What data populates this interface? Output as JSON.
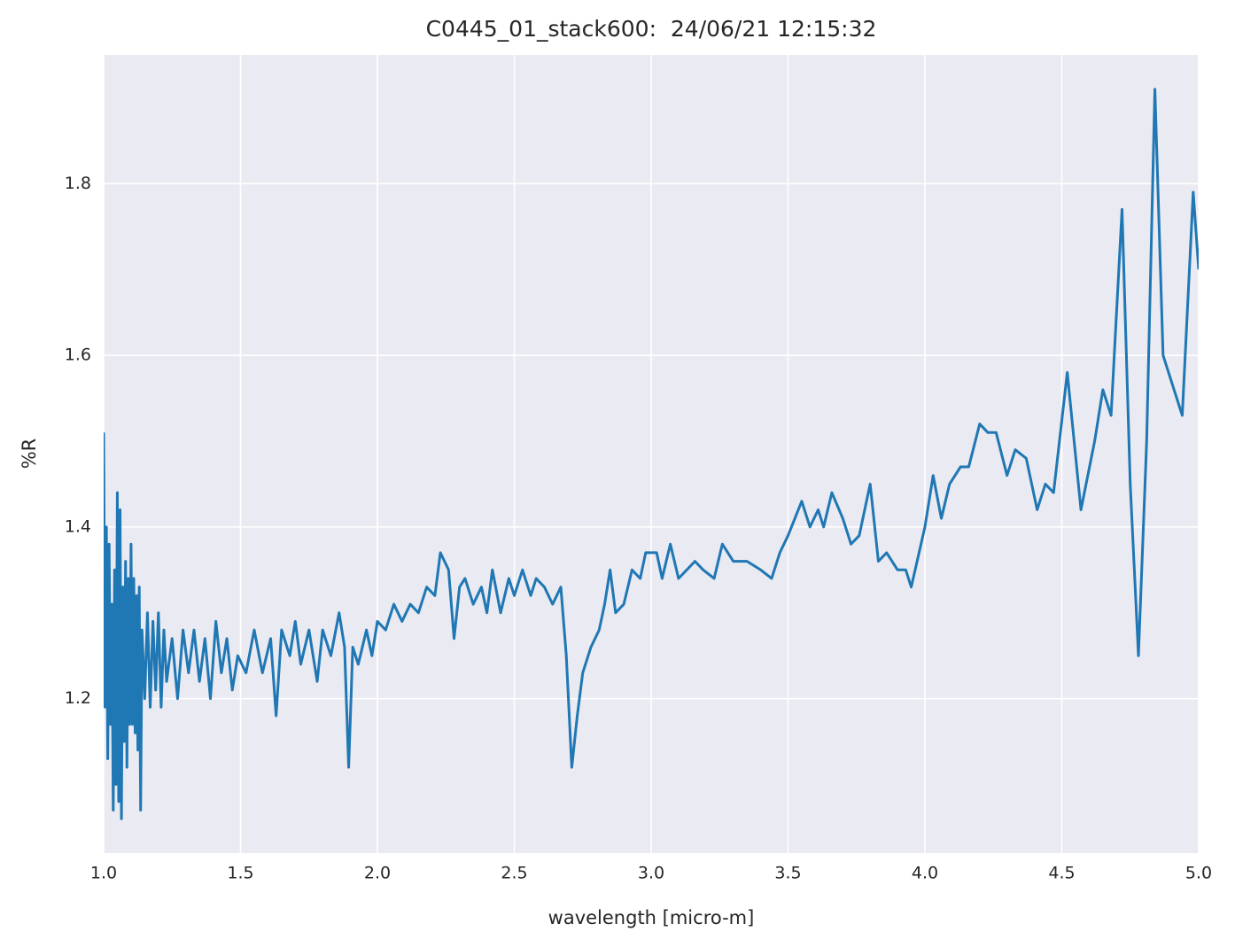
{
  "chart_data": {
    "type": "line",
    "title": "C0445_01_stack600:  24/06/21 12:15:32",
    "x_label": "wavelength [micro-m]",
    "y_label": "%R",
    "color": "#1f77b4",
    "background": "#eaeaf2",
    "grid": true,
    "xlim": [
      1,
      5
    ],
    "ylim": [
      1.02,
      1.95
    ],
    "xticks": [
      {
        "value": 1,
        "label": "1.0"
      },
      1.5,
      {
        "value": 2,
        "label": "2.0"
      },
      2.5,
      {
        "value": 3,
        "label": "3.0"
      },
      3.5,
      {
        "value": 4,
        "label": "4.0"
      },
      4.5,
      {
        "value": 5,
        "label": "5.0"
      }
    ],
    "yticks": [
      1.2,
      1.4,
      1.6,
      1.8
    ],
    "x": [
      1.0,
      1.005,
      1.01,
      1.015,
      1.02,
      1.025,
      1.03,
      1.035,
      1.04,
      1.045,
      1.05,
      1.055,
      1.06,
      1.065,
      1.07,
      1.075,
      1.08,
      1.085,
      1.09,
      1.095,
      1.1,
      1.105,
      1.11,
      1.115,
      1.12,
      1.125,
      1.13,
      1.135,
      1.14,
      1.15,
      1.16,
      1.17,
      1.18,
      1.19,
      1.2,
      1.21,
      1.22,
      1.23,
      1.25,
      1.27,
      1.29,
      1.31,
      1.33,
      1.35,
      1.37,
      1.39,
      1.41,
      1.43,
      1.45,
      1.47,
      1.49,
      1.52,
      1.55,
      1.58,
      1.61,
      1.63,
      1.65,
      1.68,
      1.7,
      1.72,
      1.75,
      1.78,
      1.8,
      1.83,
      1.86,
      1.88,
      1.895,
      1.91,
      1.93,
      1.96,
      1.98,
      2.0,
      2.03,
      2.06,
      2.09,
      2.12,
      2.15,
      2.18,
      2.21,
      2.23,
      2.26,
      2.28,
      2.3,
      2.32,
      2.35,
      2.38,
      2.4,
      2.42,
      2.45,
      2.48,
      2.5,
      2.53,
      2.56,
      2.58,
      2.61,
      2.64,
      2.67,
      2.69,
      2.71,
      2.73,
      2.75,
      2.78,
      2.81,
      2.83,
      2.85,
      2.87,
      2.9,
      2.93,
      2.96,
      2.98,
      3.02,
      3.04,
      3.07,
      3.1,
      3.13,
      3.16,
      3.19,
      3.23,
      3.26,
      3.3,
      3.35,
      3.4,
      3.44,
      3.47,
      3.5,
      3.55,
      3.58,
      3.61,
      3.63,
      3.66,
      3.7,
      3.73,
      3.76,
      3.8,
      3.83,
      3.86,
      3.9,
      3.93,
      3.95,
      4.0,
      4.03,
      4.06,
      4.09,
      4.13,
      4.16,
      4.2,
      4.23,
      4.26,
      4.3,
      4.33,
      4.37,
      4.41,
      4.44,
      4.47,
      4.52,
      4.57,
      4.62,
      4.65,
      4.68,
      4.72,
      4.75,
      4.78,
      4.81,
      4.84,
      4.87,
      4.9,
      4.94,
      4.98,
      5.0
    ],
    "values": [
      1.51,
      1.19,
      1.4,
      1.13,
      1.38,
      1.17,
      1.31,
      1.07,
      1.35,
      1.1,
      1.44,
      1.08,
      1.42,
      1.06,
      1.33,
      1.15,
      1.36,
      1.12,
      1.34,
      1.17,
      1.38,
      1.17,
      1.34,
      1.16,
      1.32,
      1.14,
      1.33,
      1.07,
      1.28,
      1.2,
      1.3,
      1.19,
      1.29,
      1.21,
      1.3,
      1.19,
      1.28,
      1.22,
      1.27,
      1.2,
      1.28,
      1.23,
      1.28,
      1.22,
      1.27,
      1.2,
      1.29,
      1.23,
      1.27,
      1.21,
      1.25,
      1.23,
      1.28,
      1.23,
      1.27,
      1.18,
      1.28,
      1.25,
      1.29,
      1.24,
      1.28,
      1.22,
      1.28,
      1.25,
      1.3,
      1.26,
      1.12,
      1.26,
      1.24,
      1.28,
      1.25,
      1.29,
      1.28,
      1.31,
      1.29,
      1.31,
      1.3,
      1.33,
      1.32,
      1.37,
      1.35,
      1.27,
      1.33,
      1.34,
      1.31,
      1.33,
      1.3,
      1.35,
      1.3,
      1.34,
      1.32,
      1.35,
      1.32,
      1.34,
      1.33,
      1.31,
      1.33,
      1.25,
      1.12,
      1.18,
      1.23,
      1.26,
      1.28,
      1.31,
      1.35,
      1.3,
      1.31,
      1.35,
      1.34,
      1.37,
      1.37,
      1.34,
      1.38,
      1.34,
      1.35,
      1.36,
      1.35,
      1.34,
      1.38,
      1.36,
      1.36,
      1.35,
      1.34,
      1.37,
      1.39,
      1.43,
      1.4,
      1.42,
      1.4,
      1.44,
      1.41,
      1.38,
      1.39,
      1.45,
      1.36,
      1.37,
      1.35,
      1.35,
      1.33,
      1.4,
      1.46,
      1.41,
      1.45,
      1.47,
      1.47,
      1.52,
      1.51,
      1.51,
      1.46,
      1.49,
      1.48,
      1.42,
      1.45,
      1.44,
      1.58,
      1.42,
      1.5,
      1.56,
      1.53,
      1.77,
      1.45,
      1.25,
      1.5,
      1.91,
      1.6,
      1.57,
      1.53,
      1.79,
      1.7
    ]
  }
}
